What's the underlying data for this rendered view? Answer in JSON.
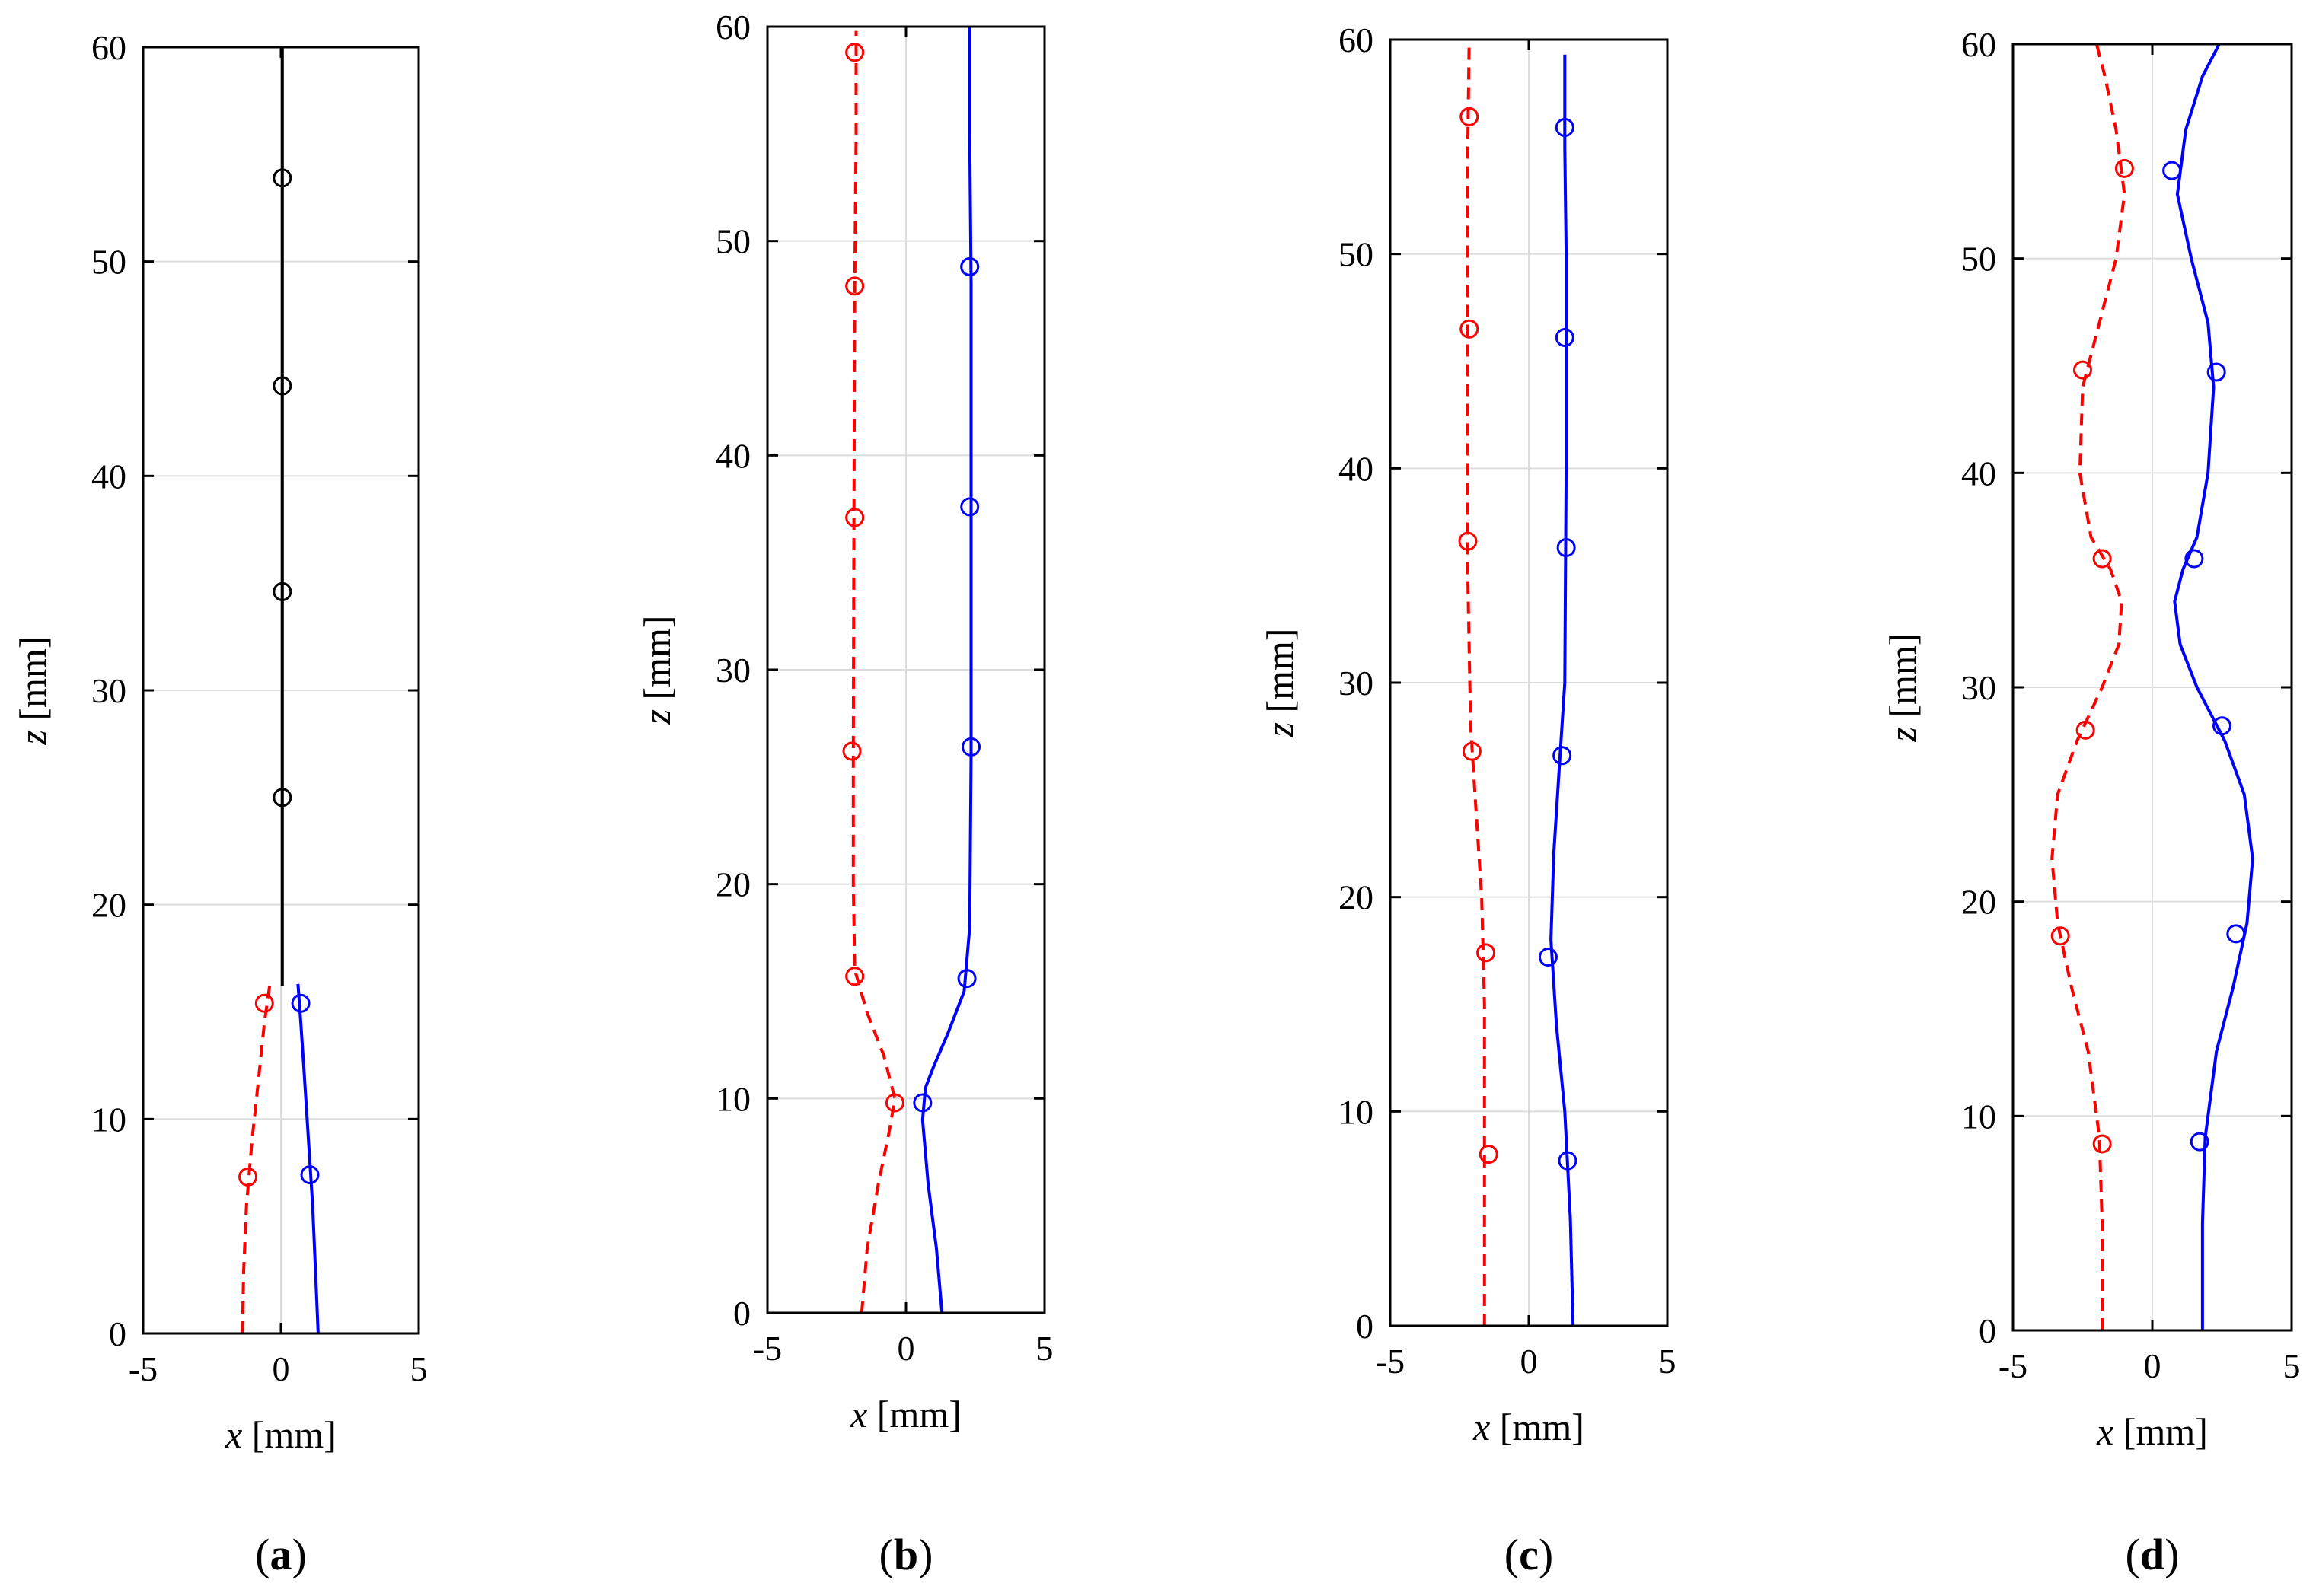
{
  "figure": {
    "description_free": true
  },
  "chart_data": [
    {
      "type": "line",
      "panel_label": "a",
      "xlabel_var": "x",
      "xlabel_unit": " [mm]",
      "ylabel_var": "z",
      "ylabel_unit": " [mm]",
      "xlim": [
        -5,
        5
      ],
      "ylim": [
        0,
        60
      ],
      "xticks": [
        -5,
        0,
        5
      ],
      "yticks": [
        0,
        10,
        20,
        30,
        40,
        50,
        60
      ],
      "xtick_labels": [
        "-5",
        "0",
        "5"
      ],
      "ytick_labels": [
        "0",
        "10",
        "20",
        "30",
        "40",
        "50",
        "60"
      ],
      "grid": true,
      "series": [
        {
          "name": "center",
          "color": "#000000",
          "dash": false,
          "x": [
            0.05,
            0.05,
            0.05,
            0.05,
            0.05,
            0.05,
            0.05,
            0.05
          ],
          "z": [
            16.2,
            20,
            25,
            30,
            35,
            40,
            50,
            60
          ],
          "markers": {
            "x": [
              0.05,
              0.05,
              0.05,
              0.05
            ],
            "z": [
              25.0,
              34.6,
              44.2,
              53.9
            ]
          }
        },
        {
          "name": "red",
          "color": "#ff0000",
          "dash": true,
          "x": [
            -1.4,
            -1.35,
            -1.25,
            -1.05,
            -0.8,
            -0.6,
            -0.4
          ],
          "z": [
            0,
            3,
            6,
            9,
            12,
            14.5,
            16.3
          ],
          "markers": {
            "x": [
              -1.2,
              -0.6
            ],
            "z": [
              7.3,
              15.4
            ]
          }
        },
        {
          "name": "blue",
          "color": "#0000ff",
          "dash": false,
          "x": [
            1.35,
            1.25,
            1.15,
            1.0,
            0.85,
            0.72,
            0.62
          ],
          "z": [
            0,
            3,
            6,
            9,
            12,
            14.5,
            16.3
          ],
          "markers": {
            "x": [
              1.05,
              0.72
            ],
            "z": [
              7.4,
              15.4
            ]
          }
        }
      ]
    },
    {
      "type": "line",
      "panel_label": "b",
      "xlabel_var": "x",
      "xlabel_unit": " [mm]",
      "ylabel_var": "z",
      "ylabel_unit": " [mm]",
      "xlim": [
        -5,
        5
      ],
      "ylim": [
        0,
        60
      ],
      "xticks": [
        -5,
        0,
        5
      ],
      "yticks": [
        0,
        10,
        20,
        30,
        40,
        50,
        60
      ],
      "xtick_labels": [
        "-5",
        "0",
        "5"
      ],
      "ytick_labels": [
        "0",
        "10",
        "20",
        "30",
        "40",
        "50",
        "60"
      ],
      "grid": true,
      "series": [
        {
          "name": "red",
          "color": "#ff0000",
          "dash": true,
          "x": [
            -1.6,
            -1.4,
            -1.0,
            -0.6,
            -0.4,
            -0.8,
            -1.4,
            -1.85,
            -1.9,
            -1.9,
            -1.88,
            -1.85,
            -1.8,
            -1.8
          ],
          "z": [
            0,
            3,
            6,
            8.5,
            10,
            12,
            14,
            16,
            20,
            26,
            37,
            48,
            55,
            59.8
          ],
          "markers": {
            "x": [
              -0.4,
              -1.85,
              -1.95,
              -1.85,
              -1.85,
              -1.85
            ],
            "z": [
              9.8,
              15.7,
              26.2,
              37.1,
              47.9,
              58.8
            ]
          }
        },
        {
          "name": "blue",
          "color": "#0000ff",
          "dash": false,
          "x": [
            1.3,
            1.1,
            0.8,
            0.6,
            0.7,
            1.0,
            1.5,
            2.1,
            2.3,
            2.35,
            2.35,
            2.35,
            2.3,
            2.3
          ],
          "z": [
            0,
            3,
            6,
            9,
            10.5,
            11.5,
            13,
            15,
            18,
            26,
            37,
            48,
            55,
            60
          ],
          "markers": {
            "x": [
              0.6,
              2.2,
              2.35,
              2.3,
              2.3,
              2.3
            ],
            "z": [
              9.8,
              15.6,
              26.4,
              37.6,
              48.8,
              48.8
            ]
          }
        }
      ]
    },
    {
      "type": "line",
      "panel_label": "c",
      "xlabel_var": "x",
      "xlabel_unit": " [mm]",
      "ylabel_var": "z",
      "ylabel_unit": " [mm]",
      "xlim": [
        -5,
        5
      ],
      "ylim": [
        0,
        60
      ],
      "xticks": [
        -5,
        0,
        5
      ],
      "yticks": [
        0,
        10,
        20,
        30,
        40,
        50,
        60
      ],
      "xtick_labels": [
        "-5",
        "0",
        "5"
      ],
      "ytick_labels": [
        "0",
        "10",
        "20",
        "30",
        "40",
        "50",
        "60"
      ],
      "grid": true,
      "series": [
        {
          "name": "red",
          "color": "#ff0000",
          "dash": true,
          "x": [
            -1.6,
            -1.6,
            -1.6,
            -1.6,
            -1.7,
            -1.9,
            -2.1,
            -2.2,
            -2.2,
            -2.2,
            -2.15
          ],
          "z": [
            0,
            5,
            10,
            15,
            20,
            24,
            28,
            35,
            45,
            55,
            60
          ],
          "markers": {
            "x": [
              -1.45,
              -1.55,
              -2.05,
              -2.2,
              -2.15,
              -2.15
            ],
            "z": [
              8.0,
              17.4,
              26.8,
              36.6,
              46.5,
              56.4
            ]
          }
        },
        {
          "name": "blue",
          "color": "#0000ff",
          "dash": false,
          "x": [
            1.6,
            1.5,
            1.3,
            1.0,
            0.8,
            0.9,
            1.1,
            1.3,
            1.35,
            1.35,
            1.3,
            1.3
          ],
          "z": [
            0,
            5,
            10,
            14,
            18,
            22,
            26,
            30,
            40,
            50,
            55,
            59.3
          ],
          "markers": {
            "x": [
              1.4,
              0.7,
              1.2,
              1.35,
              1.3,
              1.3
            ],
            "z": [
              7.7,
              17.2,
              26.6,
              36.3,
              46.1,
              55.9
            ]
          }
        }
      ]
    },
    {
      "type": "line",
      "panel_label": "d",
      "xlabel_var": "x",
      "xlabel_unit": " [mm]",
      "ylabel_var": "z",
      "ylabel_unit": " [mm]",
      "xlim": [
        -5,
        5
      ],
      "ylim": [
        0,
        60
      ],
      "xticks": [
        -5,
        0,
        5
      ],
      "yticks": [
        0,
        10,
        20,
        30,
        40,
        50,
        60
      ],
      "xtick_labels": [
        "-5",
        "0",
        "5"
      ],
      "ytick_labels": [
        "0",
        "10",
        "20",
        "30",
        "40",
        "50",
        "60"
      ],
      "grid": true,
      "series": [
        {
          "name": "red",
          "color": "#ff0000",
          "dash": true,
          "x": [
            -1.8,
            -1.8,
            -1.9,
            -2.3,
            -2.9,
            -3.4,
            -3.6,
            -3.4,
            -2.7,
            -1.8,
            -1.2,
            -1.1,
            -1.5,
            -2.2,
            -2.6,
            -2.5,
            -1.9,
            -1.3,
            -1.0,
            -1.3,
            -1.7,
            -2.0
          ],
          "z": [
            0,
            5,
            9,
            13,
            16,
            19,
            22,
            25,
            27.5,
            30,
            32,
            34,
            35.5,
            37,
            40,
            44,
            47,
            50,
            53,
            56,
            58.5,
            60
          ],
          "markers": {
            "x": [
              -1.8,
              -3.3,
              -2.4,
              -1.8,
              -2.5,
              -1.0
            ],
            "z": [
              8.7,
              18.4,
              28.0,
              36.0,
              44.8,
              54.2
            ]
          }
        },
        {
          "name": "blue",
          "color": "#0000ff",
          "dash": false,
          "x": [
            1.8,
            1.8,
            1.9,
            2.3,
            2.9,
            3.4,
            3.6,
            3.3,
            2.6,
            1.6,
            1.0,
            0.8,
            1.1,
            1.6,
            2.0,
            2.2,
            2.0,
            1.4,
            0.9,
            1.2,
            1.8,
            2.4
          ],
          "z": [
            0,
            5,
            9,
            13,
            16,
            19,
            22,
            25,
            27.5,
            30,
            32,
            34,
            35.5,
            37,
            40,
            44,
            47,
            50,
            53,
            56,
            58.5,
            60
          ],
          "markers": {
            "x": [
              1.7,
              3.0,
              2.5,
              1.5,
              2.3,
              0.7
            ],
            "z": [
              8.8,
              18.5,
              28.2,
              36.0,
              44.7,
              54.1
            ]
          }
        }
      ]
    }
  ]
}
